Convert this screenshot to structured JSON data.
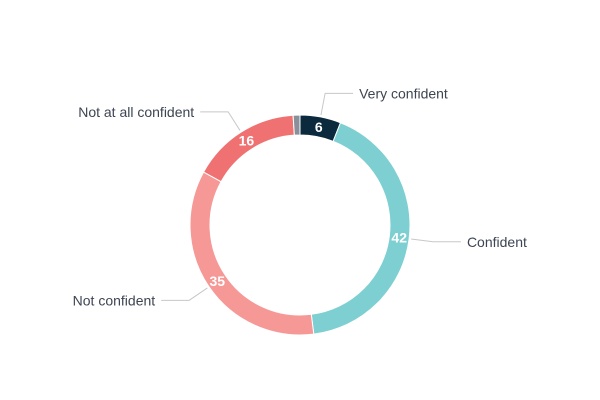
{
  "chart_data": {
    "type": "pie",
    "variant": "donut",
    "categories": [
      "Very confident",
      "Confident",
      "Not confident",
      "Not at all confident"
    ],
    "values": [
      6,
      42,
      35,
      16
    ],
    "unlabeled_values": [
      1
    ],
    "colors": {
      "Very confident": "#0c2a3e",
      "Confident": "#7ecfd2",
      "Not confident": "#f59896",
      "Not at all confident": "#f07172",
      "remainder": "#8a9099"
    },
    "label_color": "#3d4552",
    "leader_color": "#c8c8c8",
    "legend": "none"
  }
}
